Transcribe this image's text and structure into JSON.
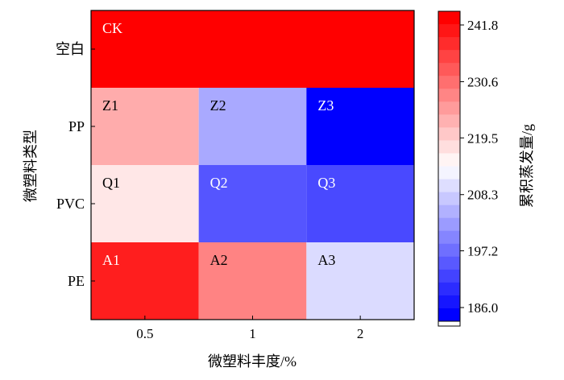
{
  "chart_data": {
    "type": "heatmap",
    "xlabel": "微塑料丰度/%",
    "ylabel": "微塑料类型",
    "x_categories": [
      "0.5",
      "1",
      "2"
    ],
    "y_categories": [
      "空白",
      "PP",
      "PVC",
      "PE"
    ],
    "cells": [
      {
        "row": 0,
        "col_start": 0,
        "col_span": 3,
        "label": "CK",
        "value": 241.8
      },
      {
        "row": 1,
        "col_start": 0,
        "col_span": 1,
        "label": "Z1",
        "value": 223.0
      },
      {
        "row": 1,
        "col_start": 1,
        "col_span": 1,
        "label": "Z2",
        "value": 204.5
      },
      {
        "row": 1,
        "col_start": 2,
        "col_span": 1,
        "label": "Z3",
        "value": 186.0
      },
      {
        "row": 2,
        "col_start": 0,
        "col_span": 1,
        "label": "Q1",
        "value": 216.5
      },
      {
        "row": 2,
        "col_start": 1,
        "col_span": 1,
        "label": "Q2",
        "value": 195.3
      },
      {
        "row": 2,
        "col_start": 2,
        "col_span": 1,
        "label": "Q3",
        "value": 194.0
      },
      {
        "row": 3,
        "col_start": 0,
        "col_span": 1,
        "label": "A1",
        "value": 238.5
      },
      {
        "row": 3,
        "col_start": 1,
        "col_span": 1,
        "label": "A2",
        "value": 227.5
      },
      {
        "row": 3,
        "col_start": 2,
        "col_span": 1,
        "label": "A3",
        "value": 210.0
      }
    ],
    "colorbar": {
      "label": "累积蒸发量/g",
      "min": 186.0,
      "max": 241.8,
      "ticks": [
        "186.0",
        "197.2",
        "208.3",
        "219.5",
        "230.6",
        "241.8"
      ],
      "low_color": "#0000ff",
      "mid_color": "#ffffff",
      "high_color": "#ff0000"
    }
  }
}
